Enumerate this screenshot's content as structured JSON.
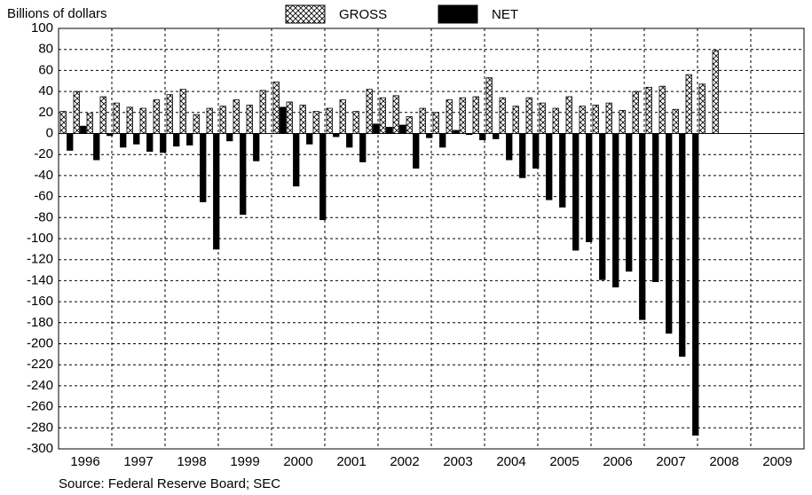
{
  "chart_data": {
    "type": "bar",
    "title": "Billions of dollars",
    "source": "Source: Federal Reserve Board; SEC",
    "series": [
      {
        "name": "GROSS",
        "color": "#ffffff",
        "pattern": "crosshatch",
        "values": [
          21,
          40,
          19,
          35,
          29,
          25,
          24,
          32,
          37,
          42,
          18,
          24,
          26,
          32,
          27,
          41,
          49,
          30,
          27,
          21,
          24,
          32,
          21,
          42,
          34,
          36,
          16,
          24,
          20,
          32,
          34,
          35,
          53,
          34,
          26,
          34,
          29,
          24,
          35,
          26,
          27,
          29,
          22,
          40,
          44,
          45,
          23,
          56,
          47,
          79
        ]
      },
      {
        "name": "NET",
        "color": "#000000",
        "values": [
          -16,
          7,
          -25,
          -2,
          -13,
          -10,
          -17,
          -18,
          -12,
          -11,
          -65,
          -110,
          -7,
          -77,
          -26,
          0,
          25,
          -50,
          -10,
          -82,
          -3,
          -13,
          -27,
          9,
          6,
          8,
          -33,
          -4,
          -13,
          3,
          -1,
          -6,
          -5,
          -25,
          -42,
          -33,
          -63,
          -70,
          -111,
          -103,
          -139,
          -146,
          -131,
          -177,
          -141,
          -190,
          -212,
          -287,
          null,
          null
        ]
      }
    ],
    "xlim": [
      1996,
      2010
    ],
    "xticks": [
      1996,
      1997,
      1998,
      1999,
      2000,
      2001,
      2002,
      2003,
      2004,
      2005,
      2006,
      2007,
      2008,
      2009
    ],
    "ylim": [
      -300,
      100
    ],
    "yticks": [
      -300,
      -280,
      -260,
      -240,
      -220,
      -200,
      -180,
      -160,
      -140,
      -120,
      -100,
      -80,
      -60,
      -40,
      -20,
      0,
      20,
      40,
      60,
      80,
      100
    ],
    "grid": true,
    "legend": "top"
  }
}
